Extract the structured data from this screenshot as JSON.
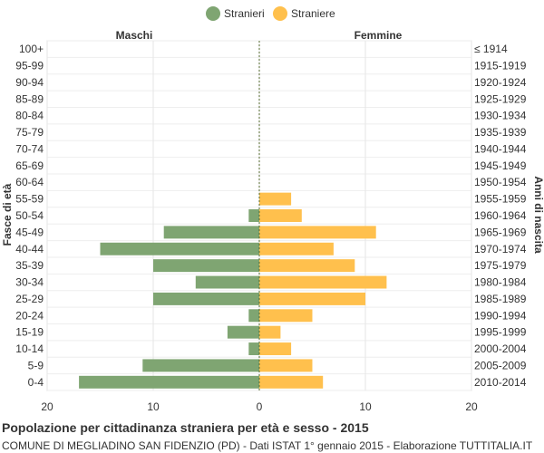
{
  "legend": [
    {
      "name": "Stranieri",
      "color": "#7fa572"
    },
    {
      "name": "Straniere",
      "color": "#ffc04d"
    }
  ],
  "header": {
    "left_label": "Maschi",
    "right_label": "Femmine"
  },
  "caption": {
    "title": "Popolazione per cittadinanza straniera per età e sesso - 2015",
    "subtitle": "COMUNE DI MEGLIADINO SAN FIDENZIO (PD) - Dati ISTAT 1° gennaio 2015 - Elaborazione TUTTITALIA.IT"
  },
  "chart_data": {
    "type": "bar",
    "orientation": "horizontal",
    "subtype": "population-pyramid",
    "ylabel": "Fasce di età",
    "ylabel_right": "Anni di nascita",
    "categories": [
      "100+",
      "95-99",
      "90-94",
      "85-89",
      "80-84",
      "75-79",
      "70-74",
      "65-69",
      "60-64",
      "55-59",
      "50-54",
      "45-49",
      "40-44",
      "35-39",
      "30-34",
      "25-29",
      "20-24",
      "15-19",
      "10-14",
      "5-9",
      "0-4"
    ],
    "birth_years": [
      "≤ 1914",
      "1915-1919",
      "1920-1924",
      "1925-1929",
      "1930-1934",
      "1935-1939",
      "1940-1944",
      "1945-1949",
      "1950-1954",
      "1955-1959",
      "1960-1964",
      "1965-1969",
      "1970-1974",
      "1975-1979",
      "1980-1984",
      "1985-1989",
      "1990-1994",
      "1995-1999",
      "2000-2004",
      "2005-2009",
      "2010-2014"
    ],
    "series": [
      {
        "name": "Stranieri",
        "side": "left",
        "color": "#7fa572",
        "values": [
          0,
          0,
          0,
          0,
          0,
          0,
          0,
          0,
          0,
          0,
          1,
          9,
          15,
          10,
          6,
          10,
          1,
          3,
          1,
          11,
          17
        ]
      },
      {
        "name": "Straniere",
        "side": "right",
        "color": "#ffc04d",
        "values": [
          0,
          0,
          0,
          0,
          0,
          0,
          0,
          0,
          0,
          3,
          4,
          11,
          7,
          9,
          12,
          10,
          5,
          2,
          3,
          5,
          6
        ]
      }
    ],
    "x_ticks": [
      20,
      10,
      0,
      10,
      20
    ],
    "xlim": [
      -20,
      20
    ],
    "grid": true,
    "legend_position": "top-center"
  }
}
